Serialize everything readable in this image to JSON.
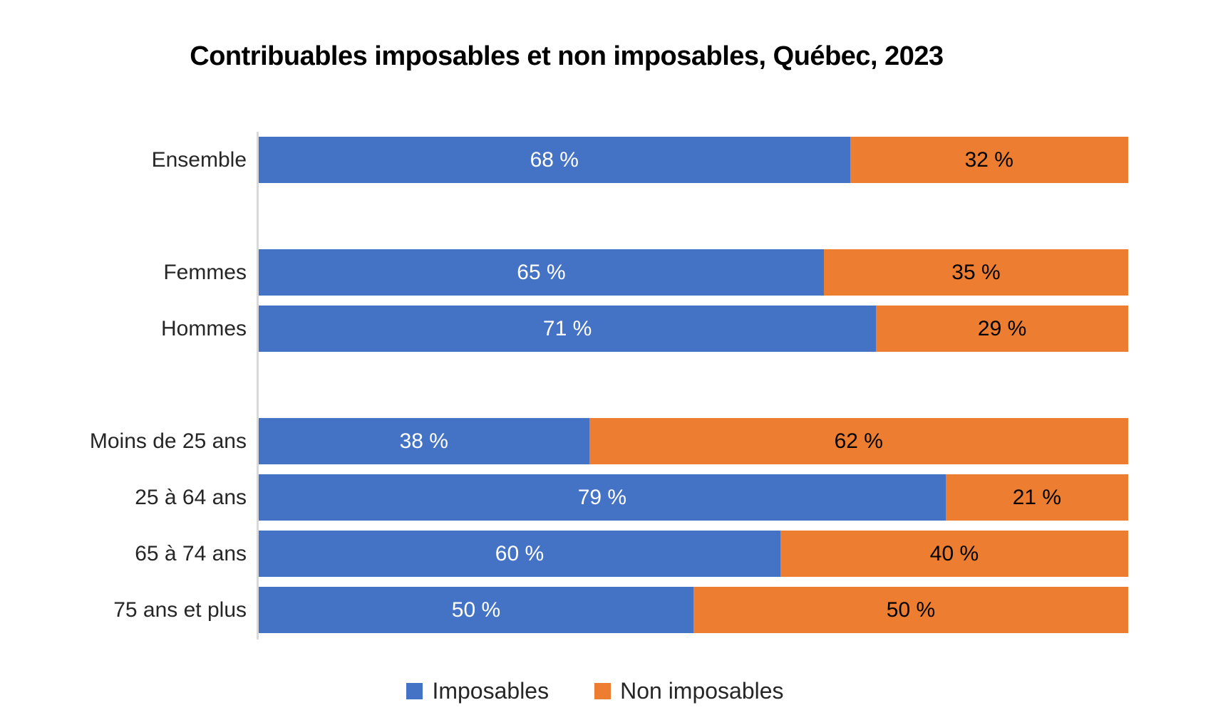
{
  "title": "Contribuables imposables et non imposables, Québec, 2023",
  "colors": {
    "imposables": "#4472C4",
    "non_imposables": "#ED7D31",
    "axis_line": "#D9D9D9",
    "category_text": "#262626",
    "value_on_blue": "#FFFFFF",
    "value_on_orange": "#000000"
  },
  "chart_data": {
    "type": "bar",
    "orientation": "horizontal",
    "stacked": true,
    "title": "Contribuables imposables et non imposables, Québec, 2023",
    "categories": [
      "Ensemble",
      "Femmes",
      "Hommes",
      "Moins de 25 ans",
      "25 à 64 ans",
      "65 à 74 ans",
      "75 ans et plus"
    ],
    "series": [
      {
        "name": "Imposables",
        "color": "#4472C4",
        "values": [
          68,
          65,
          71,
          38,
          79,
          60,
          50
        ]
      },
      {
        "name": "Non imposables",
        "color": "#ED7D31",
        "values": [
          32,
          35,
          29,
          62,
          21,
          40,
          50
        ]
      }
    ],
    "value_suffix": " %",
    "xlim": [
      0,
      100
    ],
    "grid": false,
    "legend_position": "bottom",
    "group_gaps_after": [
      0,
      2
    ]
  },
  "legend": {
    "items": [
      {
        "label": "Imposables",
        "color": "#4472C4"
      },
      {
        "label": "Non imposables",
        "color": "#ED7D31"
      }
    ]
  }
}
